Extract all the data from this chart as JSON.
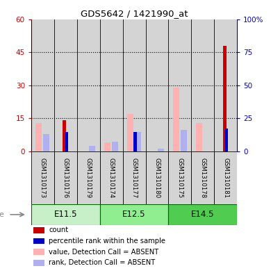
{
  "title": "GDS5642 / 1421990_at",
  "samples": [
    "GSM1310173",
    "GSM1310176",
    "GSM1310179",
    "GSM1310174",
    "GSM1310177",
    "GSM1310180",
    "GSM1310175",
    "GSM1310178",
    "GSM1310181"
  ],
  "age_groups": [
    {
      "label": "E11.5",
      "start": 0,
      "end": 3,
      "color": "#c8f0c8"
    },
    {
      "label": "E12.5",
      "start": 3,
      "end": 6,
      "color": "#90ee90"
    },
    {
      "label": "E14.5",
      "start": 6,
      "end": 9,
      "color": "#50cc50"
    }
  ],
  "count_red": [
    0,
    14,
    0,
    0,
    0,
    0,
    0,
    0,
    48
  ],
  "percentile_blue": [
    0,
    14.5,
    0,
    0,
    14.5,
    0,
    0,
    0,
    17
  ],
  "value_absent_pink": [
    13,
    0,
    0,
    4,
    17,
    0,
    29,
    13,
    0
  ],
  "rank_absent_lightblue": [
    13,
    0,
    4,
    7,
    14.5,
    2,
    16,
    0,
    0
  ],
  "ylim_left": [
    0,
    60
  ],
  "ylim_right": [
    0,
    100
  ],
  "yticks_left": [
    0,
    15,
    30,
    45,
    60
  ],
  "yticks_right": [
    0,
    25,
    50,
    75,
    100
  ],
  "yticklabels_right": [
    "0",
    "25",
    "50",
    "75",
    "100%"
  ],
  "color_red": "#cc0000",
  "color_blue": "#0000cc",
  "color_pink": "#ffb0b0",
  "color_lightblue": "#b0b0ee",
  "color_bg": "#d4d4d4",
  "bar_width": 0.28
}
